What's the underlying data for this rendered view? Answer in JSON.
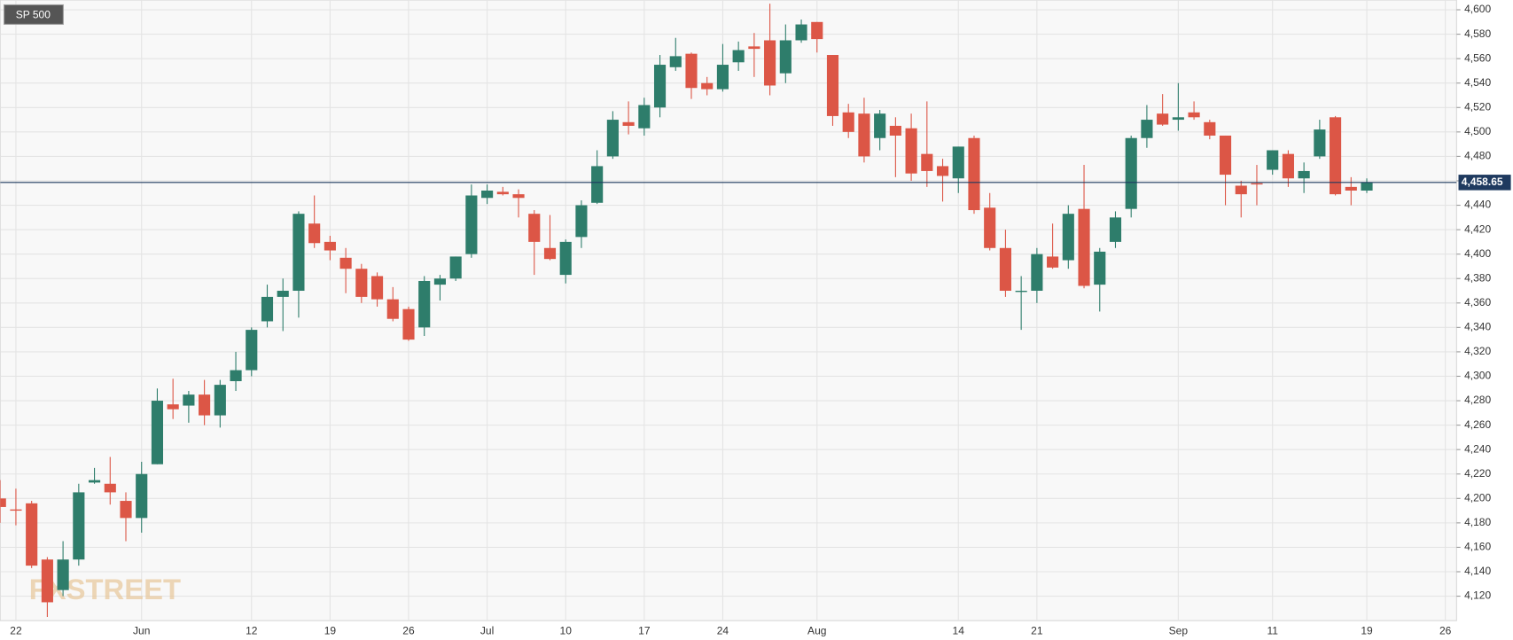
{
  "chart_data": {
    "type": "candlestick",
    "title": "SP 500",
    "watermark": "FXSTREET",
    "up_color": "#2e7d6b",
    "down_color": "#dc5646",
    "grid": true,
    "categories": [
      null,
      "22",
      null,
      null,
      null,
      null,
      null,
      null,
      null,
      "Jun",
      null,
      null,
      null,
      null,
      null,
      null,
      "12",
      null,
      null,
      null,
      null,
      "19",
      null,
      null,
      null,
      null,
      "26",
      null,
      null,
      null,
      null,
      "Jul",
      null,
      null,
      null,
      null,
      "10",
      null,
      null,
      null,
      null,
      "17",
      null,
      null,
      null,
      null,
      "24",
      null,
      null,
      null,
      null,
      null,
      "Aug",
      null,
      null,
      null,
      null,
      null,
      null,
      null,
      null,
      "14",
      null,
      null,
      null,
      null,
      "21",
      null,
      null,
      null,
      null,
      null,
      null,
      null,
      null,
      "Sep",
      null,
      null,
      null,
      null,
      null,
      "11",
      null,
      null,
      null,
      null,
      null,
      "19",
      null,
      null,
      null,
      null,
      "26"
    ],
    "open": [
      4200,
      4191,
      4196,
      4150,
      4125,
      4150,
      4213,
      4212,
      4198,
      4184,
      4228,
      4277,
      4276,
      4285,
      4268,
      4296,
      4305,
      4345,
      4365,
      4370,
      4425,
      4410,
      4397,
      4388,
      4382,
      4363,
      4355,
      4340,
      4375,
      4380,
      4400,
      4446,
      4451,
      4449,
      4433,
      4405,
      4383,
      4414,
      4442,
      4480,
      4508,
      4503,
      4520,
      4553,
      4564,
      4540,
      4535,
      4557,
      4570,
      4575,
      4548,
      4575,
      4590,
      4563,
      4516,
      4515,
      4495,
      4505,
      4503,
      4482,
      4472,
      4462,
      4495,
      4438,
      4405,
      4369,
      4370,
      4398,
      4395,
      4437,
      4375,
      4410,
      4437,
      4495,
      4515,
      4510,
      4516,
      4508,
      4497,
      4456,
      4458,
      4469,
      4482,
      4462,
      4480,
      4512,
      4455,
      4452,
      null,
      null,
      null,
      null,
      null
    ],
    "high": [
      4215,
      4208,
      4198,
      4152,
      4165,
      4212,
      4225,
      4234,
      4205,
      4230,
      4290,
      4298,
      4288,
      4297,
      4297,
      4320,
      4340,
      4375,
      4380,
      4435,
      4448,
      4415,
      4405,
      4392,
      4385,
      4373,
      4357,
      4382,
      4383,
      4398,
      4457,
      4457,
      4455,
      4453,
      4436,
      4432,
      4412,
      4444,
      4485,
      4517,
      4525,
      4528,
      4563,
      4577,
      4565,
      4545,
      4572,
      4574,
      4581,
      4605,
      4588,
      4592,
      4590,
      4563,
      4523,
      4528,
      4518,
      4512,
      4515,
      4525,
      4478,
      4488,
      4497,
      4450,
      4420,
      4382,
      4405,
      4425,
      4440,
      4473,
      4405,
      4435,
      4497,
      4522,
      4531,
      4540,
      4525,
      4510,
      4497,
      4460,
      4473,
      4485,
      4485,
      4475,
      4510,
      4513,
      4463,
      4462,
      null,
      null,
      null,
      null,
      null
    ],
    "low": [
      4180,
      4178,
      4143,
      4103,
      4120,
      4145,
      4212,
      4195,
      4165,
      4172,
      4228,
      4265,
      4262,
      4260,
      4258,
      4288,
      4300,
      4340,
      4337,
      4348,
      4405,
      4395,
      4368,
      4360,
      4357,
      4345,
      4329,
      4333,
      4362,
      4378,
      4397,
      4441,
      4448,
      4430,
      4383,
      4395,
      4376,
      4405,
      4441,
      4478,
      4498,
      4497,
      4512,
      4550,
      4527,
      4530,
      4533,
      4550,
      4545,
      4530,
      4540,
      4573,
      4565,
      4505,
      4495,
      4475,
      4485,
      4463,
      4460,
      4455,
      4443,
      4450,
      4433,
      4403,
      4365,
      4338,
      4360,
      4388,
      4388,
      4372,
      4353,
      4405,
      4430,
      4487,
      4505,
      4501,
      4510,
      4494,
      4440,
      4430,
      4440,
      4465,
      4455,
      4450,
      4478,
      4448,
      4440,
      4450,
      null,
      null,
      null,
      null,
      null
    ],
    "close": [
      4193,
      4190,
      4145,
      4115,
      4150,
      4205,
      4215,
      4205,
      4184,
      4220,
      4280,
      4273,
      4285,
      4268,
      4293,
      4305,
      4338,
      4365,
      4370,
      4433,
      4409,
      4403,
      4388,
      4365,
      4363,
      4347,
      4330,
      4378,
      4380,
      4398,
      4448,
      4452,
      4449,
      4446,
      4410,
      4396,
      4410,
      4440,
      4472,
      4510,
      4505,
      4522,
      4555,
      4562,
      4536,
      4535,
      4555,
      4567,
      4568,
      4538,
      4575,
      4588,
      4576,
      4513,
      4500,
      4480,
      4515,
      4497,
      4466,
      4468,
      4464,
      4488,
      4436,
      4405,
      4370,
      4370,
      4400,
      4389,
      4433,
      4374,
      4402,
      4430,
      4495,
      4510,
      4506,
      4512,
      4512,
      4497,
      4465,
      4449,
      4457,
      4485,
      4462,
      4468,
      4502,
      4449,
      4452,
      4458.65,
      null,
      null,
      null,
      null,
      null
    ],
    "last": {
      "value": 4458.65,
      "label": "4,458.65",
      "color": "#1f3a5f"
    },
    "ylim": [
      4100,
      4608
    ],
    "yticks": [
      {
        "value": 4120,
        "label": "4,120"
      },
      {
        "value": 4140,
        "label": "4,140"
      },
      {
        "value": 4160,
        "label": "4,160"
      },
      {
        "value": 4180,
        "label": "4,180"
      },
      {
        "value": 4200,
        "label": "4,200"
      },
      {
        "value": 4220,
        "label": "4,220"
      },
      {
        "value": 4240,
        "label": "4,240"
      },
      {
        "value": 4260,
        "label": "4,260"
      },
      {
        "value": 4280,
        "label": "4,280"
      },
      {
        "value": 4300,
        "label": "4,300"
      },
      {
        "value": 4320,
        "label": "4,320"
      },
      {
        "value": 4340,
        "label": "4,340"
      },
      {
        "value": 4360,
        "label": "4,360"
      },
      {
        "value": 4380,
        "label": "4,380"
      },
      {
        "value": 4400,
        "label": "4,400"
      },
      {
        "value": 4420,
        "label": "4,420"
      },
      {
        "value": 4440,
        "label": "4,440"
      },
      {
        "value": 4460,
        "label": "4,460"
      },
      {
        "value": 4480,
        "label": "4,480"
      },
      {
        "value": 4500,
        "label": "4,500"
      },
      {
        "value": 4520,
        "label": "4,520"
      },
      {
        "value": 4540,
        "label": "4,540"
      },
      {
        "value": 4560,
        "label": "4,560"
      },
      {
        "value": 4580,
        "label": "4,580"
      },
      {
        "value": 4600,
        "label": "4,600"
      }
    ]
  }
}
